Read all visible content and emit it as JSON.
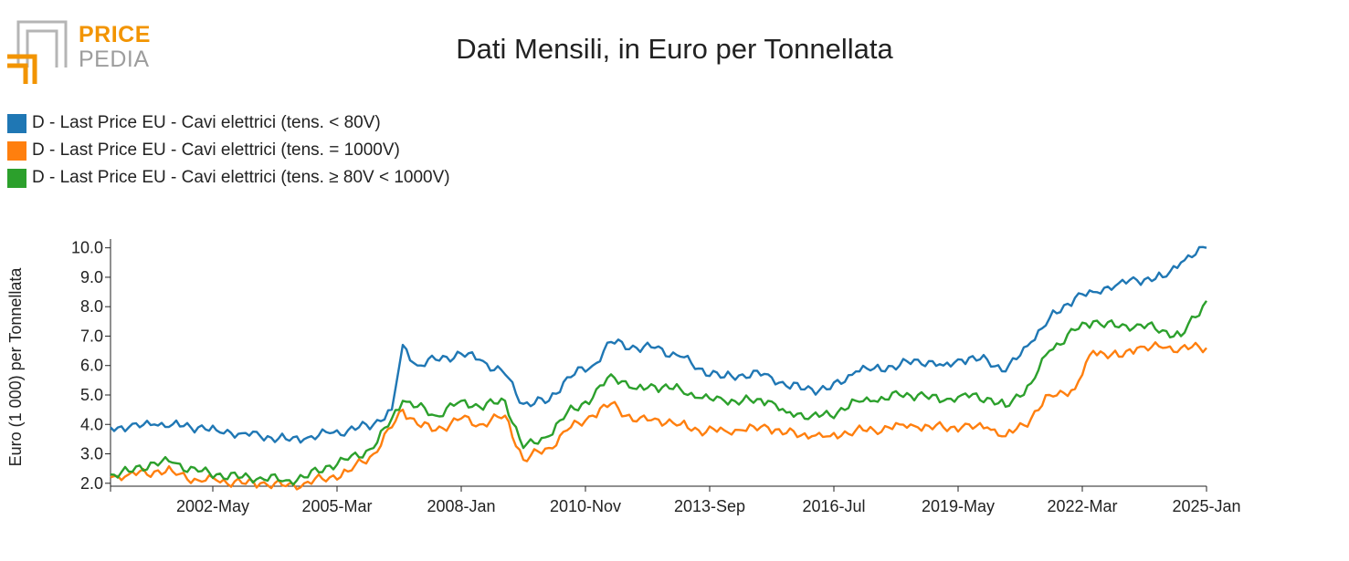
{
  "header": {
    "logo_word1": "PRICE",
    "logo_word2": "PEDIA",
    "title": "Dati Mensili, in Euro per Tonnellata"
  },
  "colors": {
    "series1": "#1f77b4",
    "series2": "#ff7f0e",
    "series3": "#2ca02c",
    "logo_orange": "#f29400",
    "logo_grey": "#9d9d9d"
  },
  "chart_data": {
    "type": "line",
    "title": "Dati Mensili, in Euro per Tonnellata",
    "ylabel": "Euro (1 000) per Tonnellata",
    "xlabel": "",
    "ylim": [
      1.9,
      10.3
    ],
    "x_range": [
      "2000-01",
      "2025-01"
    ],
    "y_ticks": [
      "2.0",
      "3.0",
      "4.0",
      "5.0",
      "6.0",
      "7.0",
      "8.0",
      "9.0",
      "10.0"
    ],
    "x_ticks": [
      "2002-May",
      "2005-Mar",
      "2008-Jan",
      "2010-Nov",
      "2013-Sep",
      "2016-Jul",
      "2019-May",
      "2022-Mar",
      "2025-Jan"
    ],
    "legend_position": "top-left",
    "grid": false,
    "series": [
      {
        "name": "D - Last Price EU - Cavi elettrici (tens. < 80V)",
        "points": [
          [
            "2000-01",
            3.9
          ],
          [
            "2000-06",
            3.9
          ],
          [
            "2001-01",
            4.0
          ],
          [
            "2001-06",
            4.0
          ],
          [
            "2002-01",
            3.9
          ],
          [
            "2002-06",
            3.8
          ],
          [
            "2003-01",
            3.7
          ],
          [
            "2003-06",
            3.6
          ],
          [
            "2004-01",
            3.5
          ],
          [
            "2004-06",
            3.5
          ],
          [
            "2005-01",
            3.7
          ],
          [
            "2005-06",
            3.8
          ],
          [
            "2006-01",
            4.0
          ],
          [
            "2006-06",
            4.5
          ],
          [
            "2006-09",
            6.7
          ],
          [
            "2007-01",
            6.0
          ],
          [
            "2007-06",
            6.2
          ],
          [
            "2008-01",
            6.4
          ],
          [
            "2008-06",
            6.2
          ],
          [
            "2009-01",
            5.7
          ],
          [
            "2009-06",
            4.7
          ],
          [
            "2010-01",
            4.8
          ],
          [
            "2010-06",
            5.6
          ],
          [
            "2011-01",
            6.0
          ],
          [
            "2011-06",
            6.8
          ],
          [
            "2012-01",
            6.6
          ],
          [
            "2012-06",
            6.6
          ],
          [
            "2013-01",
            6.3
          ],
          [
            "2013-06",
            5.9
          ],
          [
            "2014-01",
            5.6
          ],
          [
            "2014-06",
            5.7
          ],
          [
            "2015-01",
            5.7
          ],
          [
            "2015-06",
            5.3
          ],
          [
            "2016-01",
            5.2
          ],
          [
            "2016-06",
            5.2
          ],
          [
            "2017-01",
            5.8
          ],
          [
            "2017-06",
            5.9
          ],
          [
            "2018-01",
            6.0
          ],
          [
            "2018-06",
            6.2
          ],
          [
            "2019-01",
            6.0
          ],
          [
            "2019-06",
            6.2
          ],
          [
            "2020-01",
            6.2
          ],
          [
            "2020-06",
            5.8
          ],
          [
            "2021-01",
            6.8
          ],
          [
            "2021-06",
            7.6
          ],
          [
            "2022-01",
            8.3
          ],
          [
            "2022-06",
            8.5
          ],
          [
            "2023-01",
            8.8
          ],
          [
            "2023-06",
            8.9
          ],
          [
            "2024-01",
            9.0
          ],
          [
            "2024-06",
            9.5
          ],
          [
            "2025-01",
            10.0
          ]
        ]
      },
      {
        "name": "D - Last Price EU - Cavi elettrici (tens. = 1000V)",
        "points": [
          [
            "2000-01",
            2.2
          ],
          [
            "2000-06",
            2.3
          ],
          [
            "2001-01",
            2.4
          ],
          [
            "2001-06",
            2.4
          ],
          [
            "2002-01",
            2.1
          ],
          [
            "2002-06",
            2.1
          ],
          [
            "2003-01",
            2.0
          ],
          [
            "2003-06",
            2.0
          ],
          [
            "2004-01",
            1.9
          ],
          [
            "2004-06",
            2.0
          ],
          [
            "2005-01",
            2.2
          ],
          [
            "2005-06",
            2.4
          ],
          [
            "2006-01",
            3.0
          ],
          [
            "2006-06",
            3.9
          ],
          [
            "2006-09",
            4.5
          ],
          [
            "2007-01",
            4.0
          ],
          [
            "2007-06",
            3.8
          ],
          [
            "2008-01",
            4.2
          ],
          [
            "2008-06",
            4.0
          ],
          [
            "2009-01",
            4.3
          ],
          [
            "2009-06",
            2.8
          ],
          [
            "2010-01",
            3.2
          ],
          [
            "2010-06",
            3.8
          ],
          [
            "2011-01",
            4.3
          ],
          [
            "2011-06",
            4.7
          ],
          [
            "2012-01",
            4.1
          ],
          [
            "2012-06",
            4.2
          ],
          [
            "2013-01",
            4.0
          ],
          [
            "2013-06",
            3.8
          ],
          [
            "2014-01",
            3.8
          ],
          [
            "2014-06",
            3.8
          ],
          [
            "2015-01",
            3.9
          ],
          [
            "2015-06",
            3.7
          ],
          [
            "2016-01",
            3.6
          ],
          [
            "2016-06",
            3.6
          ],
          [
            "2017-01",
            3.8
          ],
          [
            "2017-06",
            3.8
          ],
          [
            "2018-01",
            4.0
          ],
          [
            "2018-06",
            3.9
          ],
          [
            "2019-01",
            3.9
          ],
          [
            "2019-06",
            3.9
          ],
          [
            "2020-01",
            3.9
          ],
          [
            "2020-06",
            3.6
          ],
          [
            "2021-01",
            4.2
          ],
          [
            "2021-06",
            5.0
          ],
          [
            "2022-01",
            5.2
          ],
          [
            "2022-06",
            6.5
          ],
          [
            "2023-01",
            6.3
          ],
          [
            "2023-06",
            6.6
          ],
          [
            "2024-01",
            6.6
          ],
          [
            "2024-06",
            6.6
          ],
          [
            "2025-01",
            6.6
          ]
        ]
      },
      {
        "name": "D - Last Price EU - Cavi elettrici (tens. ≥ 80V < 1000V)",
        "points": [
          [
            "2000-01",
            2.3
          ],
          [
            "2000-06",
            2.4
          ],
          [
            "2001-01",
            2.7
          ],
          [
            "2001-06",
            2.7
          ],
          [
            "2002-01",
            2.4
          ],
          [
            "2002-06",
            2.3
          ],
          [
            "2003-01",
            2.2
          ],
          [
            "2003-06",
            2.2
          ],
          [
            "2004-01",
            2.1
          ],
          [
            "2004-06",
            2.2
          ],
          [
            "2005-01",
            2.6
          ],
          [
            "2005-06",
            2.8
          ],
          [
            "2006-01",
            3.2
          ],
          [
            "2006-06",
            4.2
          ],
          [
            "2006-09",
            4.8
          ],
          [
            "2007-01",
            4.6
          ],
          [
            "2007-06",
            4.3
          ],
          [
            "2008-01",
            4.8
          ],
          [
            "2008-06",
            4.6
          ],
          [
            "2009-01",
            4.8
          ],
          [
            "2009-06",
            3.2
          ],
          [
            "2010-01",
            3.6
          ],
          [
            "2010-06",
            4.4
          ],
          [
            "2011-01",
            4.9
          ],
          [
            "2011-06",
            5.7
          ],
          [
            "2012-01",
            5.2
          ],
          [
            "2012-06",
            5.3
          ],
          [
            "2013-01",
            5.2
          ],
          [
            "2013-06",
            4.9
          ],
          [
            "2014-01",
            4.8
          ],
          [
            "2014-06",
            4.8
          ],
          [
            "2015-01",
            4.8
          ],
          [
            "2015-06",
            4.4
          ],
          [
            "2016-01",
            4.3
          ],
          [
            "2016-06",
            4.3
          ],
          [
            "2017-01",
            4.8
          ],
          [
            "2017-06",
            4.8
          ],
          [
            "2018-01",
            5.0
          ],
          [
            "2018-06",
            5.0
          ],
          [
            "2019-01",
            4.8
          ],
          [
            "2019-06",
            5.0
          ],
          [
            "2020-01",
            4.9
          ],
          [
            "2020-06",
            4.6
          ],
          [
            "2021-01",
            5.4
          ],
          [
            "2021-06",
            6.5
          ],
          [
            "2022-01",
            7.2
          ],
          [
            "2022-06",
            7.5
          ],
          [
            "2023-01",
            7.3
          ],
          [
            "2023-06",
            7.4
          ],
          [
            "2024-01",
            7.2
          ],
          [
            "2024-06",
            7.0
          ],
          [
            "2025-01",
            8.2
          ]
        ]
      }
    ]
  }
}
